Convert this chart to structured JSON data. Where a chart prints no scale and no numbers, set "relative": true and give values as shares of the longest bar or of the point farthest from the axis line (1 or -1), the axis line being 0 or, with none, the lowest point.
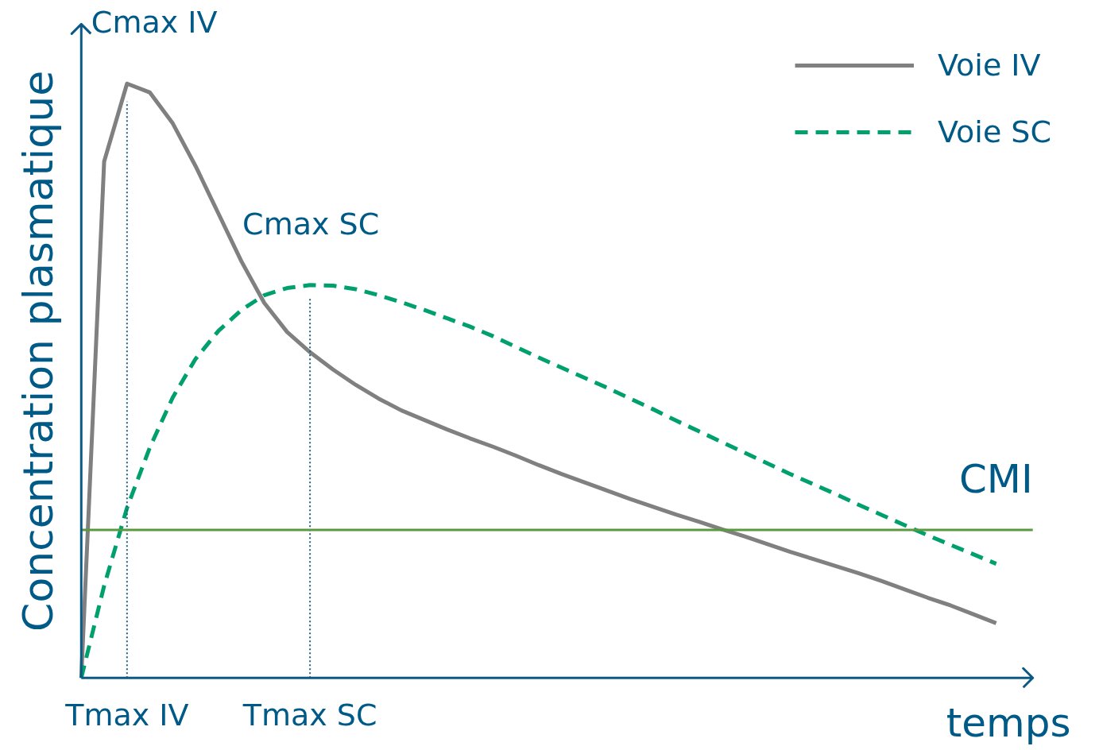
{
  "chart_data": {
    "type": "line",
    "relative": true,
    "xlabel": "temps",
    "ylabel": "Concentration plasmatique",
    "legend": "top right",
    "grid": false,
    "categories": [
      null,
      null,
      null,
      null,
      null,
      null,
      null,
      null,
      null,
      null,
      null,
      null,
      null,
      null,
      null,
      null,
      null,
      null,
      null,
      null,
      null,
      null,
      null,
      null,
      null,
      null,
      null,
      null,
      null,
      null,
      null,
      null,
      null,
      null,
      null,
      null,
      null,
      null,
      null,
      null,
      null
    ],
    "series": [
      {
        "name": "Voie IV",
        "color": "#808080",
        "line_style": "solid",
        "values": [
          0,
          0.869,
          1,
          0.985,
          0.933,
          0.861,
          0.781,
          0.701,
          0.631,
          0.582,
          0.548,
          0.519,
          0.493,
          0.47,
          0.45,
          0.434,
          0.418,
          0.403,
          0.389,
          0.374,
          0.358,
          0.343,
          0.329,
          0.315,
          0.301,
          0.288,
          0.275,
          0.263,
          0.25,
          0.238,
          0.225,
          0.212,
          0.2,
          0.188,
          0.176,
          0.163,
          0.149,
          0.135,
          0.122,
          0.107,
          0.092
        ]
      },
      {
        "name": "Voie SC",
        "color": "#00a06e",
        "line_style": "dashed",
        "values": [
          0,
          0.155,
          0.286,
          0.388,
          0.472,
          0.537,
          0.584,
          0.619,
          0.644,
          0.656,
          0.661,
          0.66,
          0.654,
          0.644,
          0.632,
          0.619,
          0.605,
          0.591,
          0.575,
          0.557,
          0.539,
          0.522,
          0.505,
          0.488,
          0.47,
          0.452,
          0.433,
          0.415,
          0.397,
          0.379,
          0.361,
          0.343,
          0.326,
          0.309,
          0.291,
          0.274,
          0.257,
          0.24,
          0.224,
          0.208,
          0.192
        ]
      }
    ],
    "ref_lines": [
      {
        "axis": "y",
        "value": 0.249,
        "label": "CMI",
        "color": "#5b9a3c",
        "line_style": "solid"
      }
    ],
    "annotations": [
      "Cmax IV",
      "Cmax SC",
      "Tmax IV",
      "Tmax SC"
    ]
  }
}
